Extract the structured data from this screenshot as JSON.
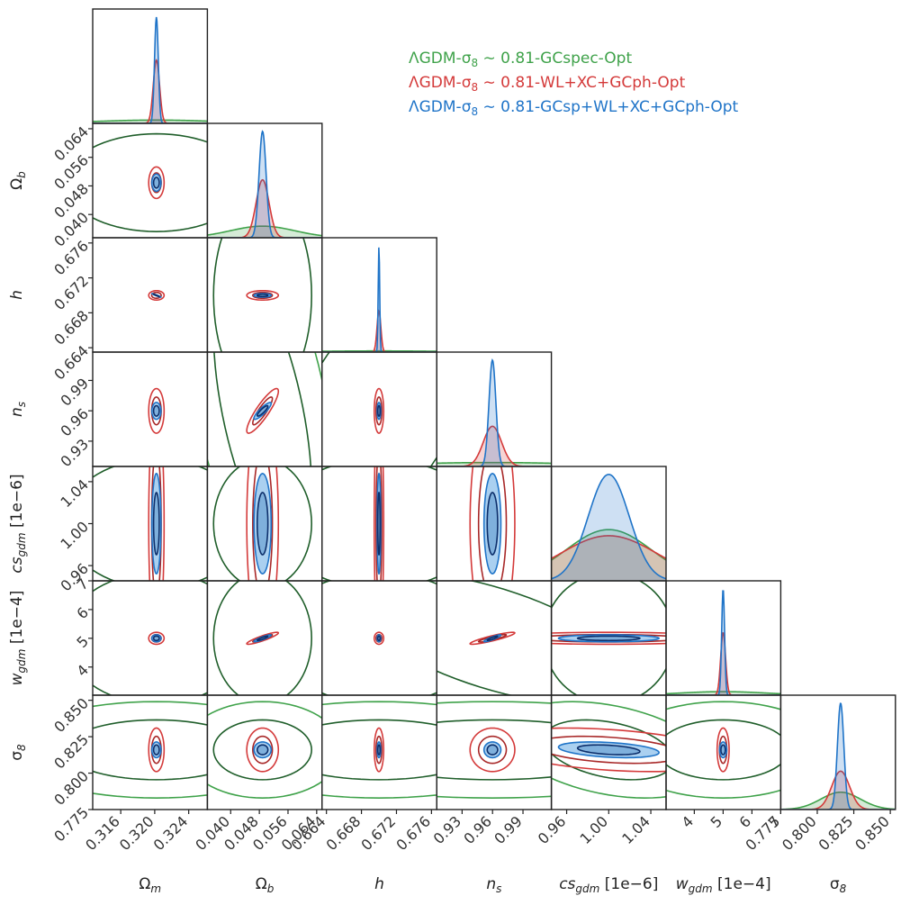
{
  "chart_data": {
    "type": "corner_plot",
    "title": "",
    "parameters": [
      {
        "name": "Omega_m",
        "label": "Ω",
        "sub": "m",
        "unit": "",
        "range": [
          0.3127,
          0.3262
        ],
        "ticks": [
          0.316,
          0.32,
          0.324
        ],
        "tick_labels": [
          "0.316",
          "0.320",
          "0.324"
        ],
        "center": 0.3202
      },
      {
        "name": "Omega_b",
        "label": "Ω",
        "sub": "b",
        "unit": "",
        "range": [
          0.0335,
          0.0655
        ],
        "ticks": [
          0.04,
          0.048,
          0.056,
          0.064
        ],
        "tick_labels": [
          "0.040",
          "0.048",
          "0.056",
          "0.064"
        ],
        "center": 0.0489
      },
      {
        "name": "h",
        "label": "h",
        "sub": "",
        "unit": "",
        "range": [
          0.6635,
          0.6766
        ],
        "ticks": [
          0.664,
          0.668,
          0.672,
          0.676
        ],
        "tick_labels": [
          "0.664",
          "0.668",
          "0.672",
          "0.676"
        ],
        "center": 0.67
      },
      {
        "name": "n_s",
        "label": "n",
        "sub": "s",
        "unit": "",
        "range": [
          0.905,
          1.018
        ],
        "ticks": [
          0.93,
          0.96,
          0.99
        ],
        "tick_labels": [
          "0.93",
          "0.96",
          "0.99"
        ],
        "center": 0.9599
      },
      {
        "name": "cs_gdm",
        "label": "cs",
        "sub": "gdm",
        "unit": " [1e−6]",
        "range": [
          0.9455,
          1.0545
        ],
        "ticks": [
          0.96,
          1.0,
          1.04
        ],
        "tick_labels": [
          "0.96",
          "1.00",
          "1.04"
        ],
        "center": 1.0
      },
      {
        "name": "w_gdm",
        "label": "w",
        "sub": "gdm",
        "unit": " [1e−4]",
        "range": [
          3.02,
          7.0
        ],
        "ticks": [
          4,
          5,
          6,
          7
        ],
        "tick_labels": [
          "4",
          "5",
          "6",
          "7"
        ],
        "center": 5.0
      },
      {
        "name": "sigma_8",
        "label": "σ",
        "sub": "8",
        "unit": "",
        "range": [
          0.775,
          0.8535
        ],
        "ticks": [
          0.775,
          0.8,
          0.825,
          0.85
        ],
        "tick_labels": [
          "0.775",
          "0.800",
          "0.825",
          "0.850"
        ],
        "center": 0.816
      }
    ],
    "series": [
      {
        "name": "ΛGDM-σ₈∼0.81-GCspec-Opt",
        "color": "#3fa24a",
        "dark": "#1f5e2a",
        "sigma": [
          0.0071,
          0.009,
          0.0078,
          0.092,
          0.0405,
          1.5,
          0.0135
        ]
      },
      {
        "name": "ΛGDM-σ₈∼0.81-WL+XC+GCph-Opt",
        "color": "#d43a3a",
        "dark": "#a82828",
        "sigma": [
          0.00037,
          0.0018,
          0.00022,
          0.009,
          0.046,
          0.085,
          0.0061
        ]
      },
      {
        "name": "ΛGDM-σ₈∼0.81-GCsp+WL+XC+GCph-Opt",
        "color": "#1f74c8",
        "dark": "#0d2f6b",
        "fill": "#aad0f0",
        "sigma": [
          0.00022,
          0.00098,
          8.5e-05,
          0.0034,
          0.0195,
          0.05,
          0.0022
        ]
      }
    ],
    "correlations": [
      {
        "i": 2,
        "j": 0,
        "rho": -0.97,
        "series": [
          2
        ]
      },
      {
        "i": 3,
        "j": 1,
        "rho": 0.88,
        "series": [
          1,
          2
        ]
      },
      {
        "i": 3,
        "j": 1,
        "rho": -0.55,
        "series": [
          0
        ]
      },
      {
        "i": 5,
        "j": 1,
        "rho": 0.9,
        "series": [
          1,
          2
        ]
      },
      {
        "i": 5,
        "j": 3,
        "rho": 0.9,
        "series": [
          1,
          2
        ]
      },
      {
        "i": 3,
        "j": 2,
        "rho": 0.6,
        "series": [
          0
        ]
      },
      {
        "i": 5,
        "j": 3,
        "rho": -0.6,
        "series": [
          0
        ]
      },
      {
        "i": 6,
        "j": 4,
        "rho": -0.35,
        "series": [
          0,
          1,
          2
        ]
      }
    ],
    "legend_position": "top-right",
    "contour_levels": [
      "68%",
      "95%"
    ]
  },
  "legend": {
    "entries": [
      {
        "text": "ΛGDM-σ",
        "sub": "8",
        "rest": " ∼ 0.81-GCspec-Opt",
        "color": "#3fa24a"
      },
      {
        "text": "ΛGDM-σ",
        "sub": "8",
        "rest": " ∼ 0.81-WL+XC+GCph-Opt",
        "color": "#d43a3a"
      },
      {
        "text": "ΛGDM-σ",
        "sub": "8",
        "rest": " ∼ 0.81-GCsp+WL+XC+GCph-Opt",
        "color": "#1f74c8"
      }
    ]
  }
}
